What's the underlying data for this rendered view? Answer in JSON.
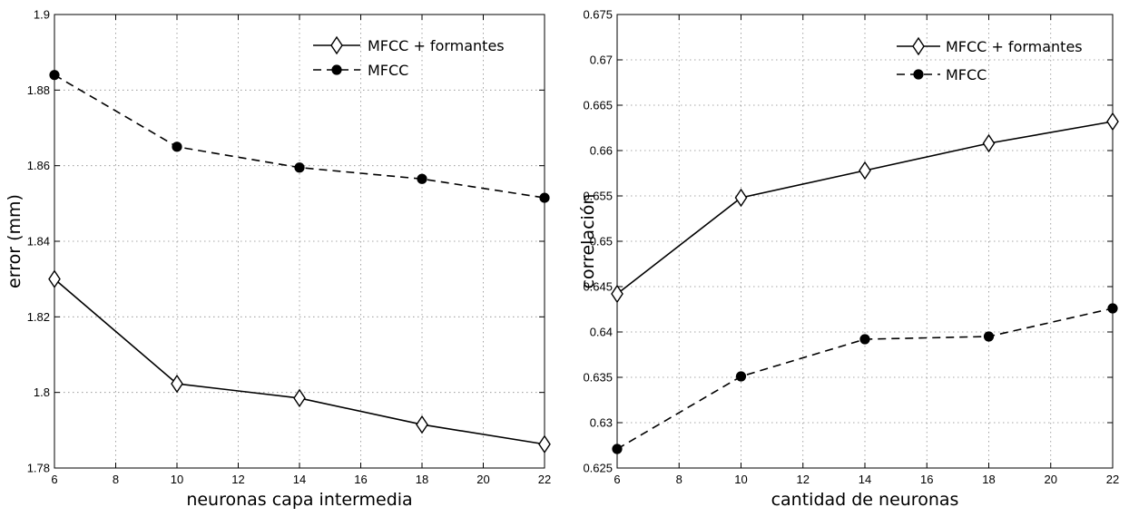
{
  "chart_data": [
    {
      "type": "line",
      "x": [
        6,
        10,
        14,
        18,
        22
      ],
      "series": [
        {
          "name": "MFCC + formantes",
          "values": [
            1.83,
            1.8023,
            1.7985,
            1.7915,
            1.7863
          ],
          "marker": "diamond",
          "line": "solid",
          "color": "#000000"
        },
        {
          "name": "MFCC",
          "values": [
            1.884,
            1.865,
            1.8595,
            1.8565,
            1.8515
          ],
          "marker": "circle",
          "line": "dashed",
          "color": "#000000"
        }
      ],
      "xlabel": "neuronas capa intermedia",
      "ylabel": "error (mm)",
      "xlim": [
        6,
        22
      ],
      "ylim": [
        1.78,
        1.9
      ],
      "xticks": [
        6,
        8,
        10,
        12,
        14,
        16,
        18,
        20,
        22
      ],
      "xtick_labels": [
        "6",
        "8",
        "10",
        "12",
        "14",
        "16",
        "18",
        "20",
        "22"
      ],
      "yticks": [
        1.78,
        1.8,
        1.82,
        1.84,
        1.86,
        1.88,
        1.9
      ],
      "ytick_labels": [
        "1.78",
        "1.8",
        "1.82",
        "1.84",
        "1.86",
        "1.88",
        "1.9"
      ],
      "grid": true,
      "legend_position": "top-right"
    },
    {
      "type": "line",
      "x": [
        6,
        10,
        14,
        18,
        22
      ],
      "series": [
        {
          "name": "MFCC + formantes",
          "values": [
            0.6442,
            0.6548,
            0.6578,
            0.6608,
            0.6632
          ],
          "marker": "diamond",
          "line": "solid",
          "color": "#000000"
        },
        {
          "name": "MFCC",
          "values": [
            0.6271,
            0.6351,
            0.6392,
            0.6395,
            0.6426
          ],
          "marker": "circle",
          "line": "dashed",
          "color": "#000000"
        }
      ],
      "xlabel": "cantidad de neuronas",
      "ylabel": "correlación",
      "xlim": [
        6,
        22
      ],
      "ylim": [
        0.625,
        0.675
      ],
      "xticks": [
        6,
        8,
        10,
        12,
        14,
        16,
        18,
        20,
        22
      ],
      "xtick_labels": [
        "6",
        "8",
        "10",
        "12",
        "14",
        "16",
        "18",
        "20",
        "22"
      ],
      "yticks": [
        0.625,
        0.63,
        0.635,
        0.64,
        0.645,
        0.65,
        0.655,
        0.66,
        0.665,
        0.67,
        0.675
      ],
      "ytick_labels": [
        "0.625",
        "0.63",
        "0.635",
        "0.64",
        "0.645",
        "0.65",
        "0.655",
        "0.66",
        "0.665",
        "0.67",
        "0.675"
      ],
      "grid": true,
      "legend_position": "top-right"
    }
  ]
}
